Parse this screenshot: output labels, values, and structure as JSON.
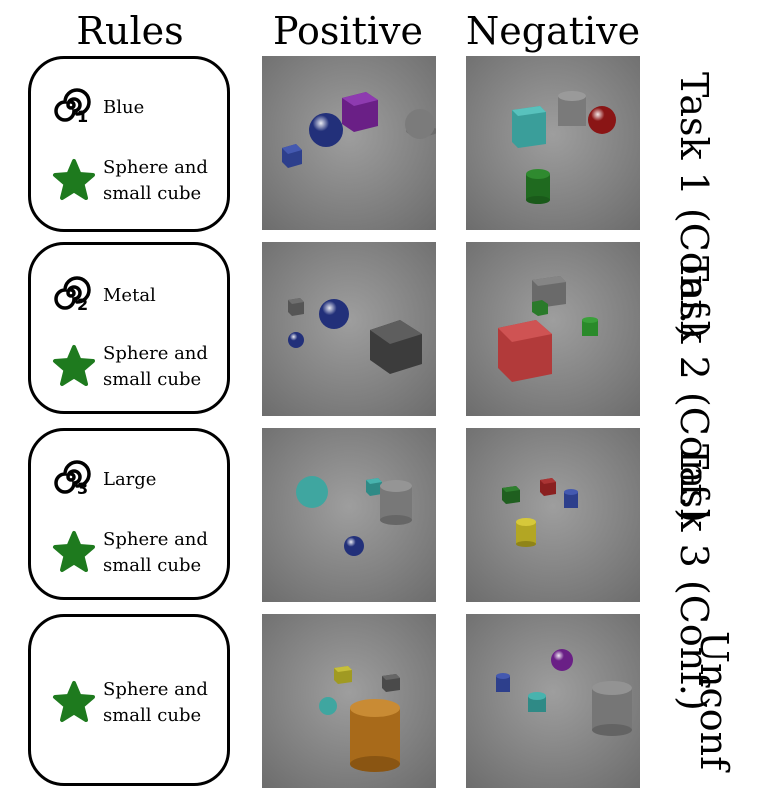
{
  "headers": {
    "rules": "Rules",
    "positive": "Positive",
    "negative": "Negative"
  },
  "rows": [
    {
      "rule_number": "1",
      "rule_text": "Blue",
      "common_rule": "Sphere and small cube",
      "task_label_1": "Task 1",
      "task_label_2": "(Conf.)"
    },
    {
      "rule_number": "2",
      "rule_text": "Metal",
      "common_rule": "Sphere and small cube",
      "task_label_1": "Task 2",
      "task_label_2": "(Conf.)"
    },
    {
      "rule_number": "3",
      "rule_text": "Large",
      "common_rule": "Sphere and small cube",
      "task_label_1": "Task 3",
      "task_label_2": "(Conf.)"
    },
    {
      "common_rule": "Sphere and small cube",
      "task_label_1": "Unconf"
    }
  ],
  "colors": {
    "spiral": "#000000",
    "star": "#1e7a1e",
    "scene_bg": "#8a8a8a"
  },
  "icons": {
    "rule_icon": "spiral-icon",
    "common_icon": "star-icon"
  }
}
